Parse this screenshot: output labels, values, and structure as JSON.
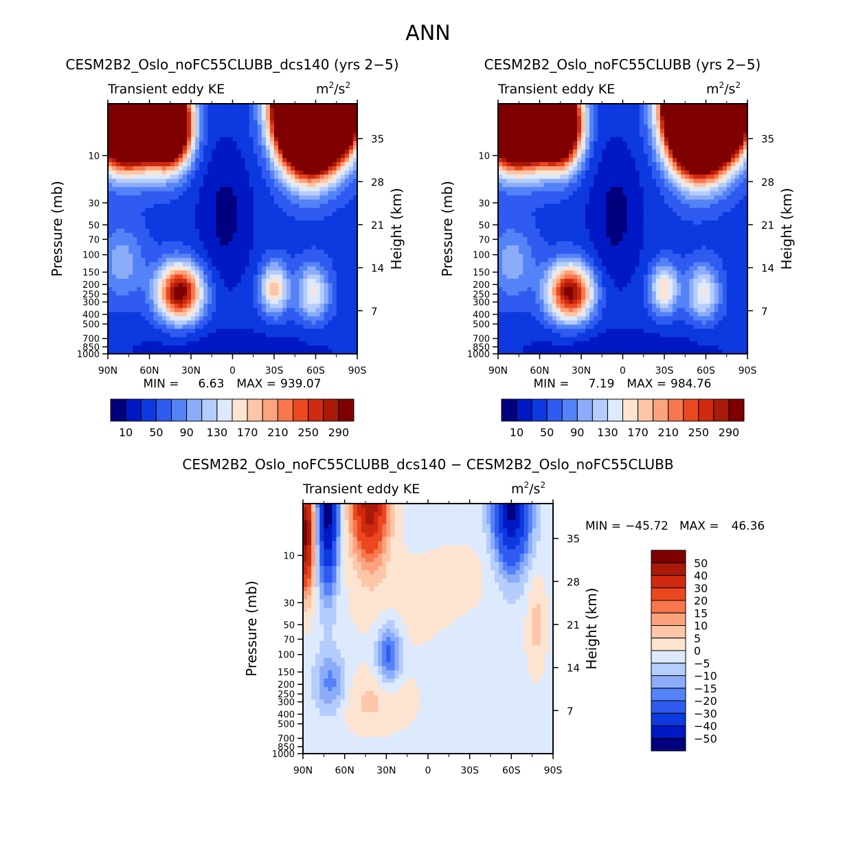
{
  "title": "ANN",
  "colors": {
    "level_scale_12": [
      "#00007f",
      "#0019c5",
      "#0d39e0",
      "#2f5bf0",
      "#5482f7",
      "#8cacfa",
      "#b5cdfc",
      "#dde9fd",
      "#fde4d0",
      "#fdc6a8",
      "#fca37e",
      "#f8774f",
      "#ec4820",
      "#cf2a10",
      "#a91a08",
      "#7f0000"
    ],
    "diff_scale": [
      "#00007f",
      "#0019c5",
      "#0d39e0",
      "#2f5bf0",
      "#5482f7",
      "#8cacfa",
      "#b5cdfc",
      "#dde9fd",
      "#fde4d0",
      "#fdc6a8",
      "#fca37e",
      "#f8774f",
      "#ec4820",
      "#cf2a10",
      "#a91a08",
      "#7f0000"
    ]
  },
  "chart_data": [
    {
      "type": "heatmap",
      "id": "panel-1",
      "title": "CESM2B2_Oslo_noFC55CLUBB_dcs140 (yrs 2−5)",
      "subtitle_left": "Transient eddy KE",
      "units_base": "m",
      "units_exp": "2",
      "units_den": "/s",
      "units_den_exp": "2",
      "ylabel": "Pressure (mb)",
      "y2label": "Height (km)",
      "xticks": [
        "90N",
        "60N",
        "30N",
        "0",
        "30S",
        "60S",
        "90S"
      ],
      "xtick_values": [
        90,
        60,
        30,
        0,
        -30,
        -60,
        -90
      ],
      "yticks": [
        "10",
        "30",
        "50",
        "70",
        "100",
        "150",
        "200",
        "250",
        "300",
        "400",
        "500",
        "700",
        "850",
        "1000"
      ],
      "ytick_values": [
        10,
        30,
        50,
        70,
        100,
        150,
        200,
        250,
        300,
        400,
        500,
        700,
        850,
        1000
      ],
      "ylim": [
        3,
        1000
      ],
      "y2ticks": [
        "35",
        "28",
        "21",
        "14",
        "7"
      ],
      "y2tick_values": [
        35,
        28,
        21,
        14,
        7
      ],
      "min_label": "MIN =",
      "min_value": "6.63",
      "max_label": "MAX =",
      "max_value": "939.07",
      "min": 6.63,
      "max": 939.07,
      "colorbar_labels": [
        "10",
        "50",
        "90",
        "130",
        "170",
        "210",
        "250",
        "290"
      ],
      "levels": [
        10,
        30,
        50,
        70,
        90,
        110,
        130,
        150,
        170,
        190,
        210,
        230,
        250,
        270,
        290
      ],
      "blobs": [
        {
          "lat": 75,
          "p": 3,
          "sl": 16,
          "sp": 0.75,
          "a": 1400
        },
        {
          "lat": 45,
          "p": 5,
          "sl": 10,
          "sp": 0.6,
          "a": 500
        },
        {
          "lat": -55,
          "p": 3,
          "sl": 14,
          "sp": 0.85,
          "a": 1500
        },
        {
          "lat": -75,
          "p": 3,
          "sl": 12,
          "sp": 0.7,
          "a": 600
        },
        {
          "lat": 38,
          "p": 240,
          "sl": 11,
          "sp": 0.45,
          "a": 270
        },
        {
          "lat": -30,
          "p": 220,
          "sl": 7,
          "sp": 0.4,
          "a": 140
        },
        {
          "lat": -58,
          "p": 240,
          "sl": 8,
          "sp": 0.45,
          "a": 110
        },
        {
          "lat": 80,
          "p": 120,
          "sl": 12,
          "sp": 0.6,
          "a": 60
        }
      ],
      "base": 42,
      "wells": [
        {
          "lat": 5,
          "p": 40,
          "sl": 14,
          "sp": 1.2,
          "a": 38
        },
        {
          "lat": 0,
          "p": 900,
          "sl": 60,
          "sp": 0.35,
          "a": 25
        }
      ]
    },
    {
      "type": "heatmap",
      "id": "panel-2",
      "title": "CESM2B2_Oslo_noFC55CLUBB (yrs 2−5)",
      "subtitle_left": "Transient eddy KE",
      "units_base": "m",
      "units_exp": "2",
      "units_den": "/s",
      "units_den_exp": "2",
      "ylabel": "Pressure (mb)",
      "y2label": "Height (km)",
      "xticks": [
        "90N",
        "60N",
        "30N",
        "0",
        "30S",
        "60S",
        "90S"
      ],
      "xtick_values": [
        90,
        60,
        30,
        0,
        -30,
        -60,
        -90
      ],
      "yticks": [
        "10",
        "30",
        "50",
        "70",
        "100",
        "150",
        "200",
        "250",
        "300",
        "400",
        "500",
        "700",
        "850",
        "1000"
      ],
      "ytick_values": [
        10,
        30,
        50,
        70,
        100,
        150,
        200,
        250,
        300,
        400,
        500,
        700,
        850,
        1000
      ],
      "ylim": [
        3,
        1000
      ],
      "y2ticks": [
        "35",
        "28",
        "21",
        "14",
        "7"
      ],
      "y2tick_values": [
        35,
        28,
        21,
        14,
        7
      ],
      "min_label": "MIN =",
      "min_value": "7.19",
      "max_label": "MAX =",
      "max_value": "984.76",
      "min": 7.19,
      "max": 984.76,
      "colorbar_labels": [
        "10",
        "50",
        "90",
        "130",
        "170",
        "210",
        "250",
        "290"
      ],
      "levels": [
        10,
        30,
        50,
        70,
        90,
        110,
        130,
        150,
        170,
        190,
        210,
        230,
        250,
        270,
        290
      ],
      "blobs": [
        {
          "lat": 75,
          "p": 3,
          "sl": 16,
          "sp": 0.75,
          "a": 1400
        },
        {
          "lat": 45,
          "p": 5,
          "sl": 10,
          "sp": 0.6,
          "a": 480
        },
        {
          "lat": -55,
          "p": 3,
          "sl": 14,
          "sp": 0.85,
          "a": 1550
        },
        {
          "lat": -75,
          "p": 3,
          "sl": 12,
          "sp": 0.7,
          "a": 600
        },
        {
          "lat": 38,
          "p": 240,
          "sl": 11,
          "sp": 0.45,
          "a": 262
        },
        {
          "lat": -30,
          "p": 220,
          "sl": 7,
          "sp": 0.4,
          "a": 128
        },
        {
          "lat": -58,
          "p": 240,
          "sl": 8,
          "sp": 0.45,
          "a": 110
        },
        {
          "lat": 80,
          "p": 120,
          "sl": 12,
          "sp": 0.6,
          "a": 60
        }
      ],
      "base": 42,
      "wells": [
        {
          "lat": 5,
          "p": 40,
          "sl": 14,
          "sp": 1.2,
          "a": 38
        },
        {
          "lat": 0,
          "p": 900,
          "sl": 60,
          "sp": 0.35,
          "a": 25
        }
      ]
    },
    {
      "type": "heatmap",
      "id": "panel-diff",
      "title": "CESM2B2_Oslo_noFC55CLUBB_dcs140 − CESM2B2_Oslo_noFC55CLUBB",
      "subtitle_left": "Transient eddy KE",
      "units_base": "m",
      "units_exp": "2",
      "units_den": "/s",
      "units_den_exp": "2",
      "ylabel": "Pressure (mb)",
      "y2label": "Height (km)",
      "xticks": [
        "90N",
        "60N",
        "30N",
        "0",
        "30S",
        "60S",
        "90S"
      ],
      "xtick_values": [
        90,
        60,
        30,
        0,
        -30,
        -60,
        -90
      ],
      "yticks": [
        "10",
        "30",
        "50",
        "70",
        "100",
        "150",
        "200",
        "250",
        "300",
        "400",
        "500",
        "700",
        "850",
        "1000"
      ],
      "ytick_values": [
        10,
        30,
        50,
        70,
        100,
        150,
        200,
        250,
        300,
        400,
        500,
        700,
        850,
        1000
      ],
      "ylim": [
        3,
        1000
      ],
      "y2ticks": [
        "35",
        "28",
        "21",
        "14",
        "7"
      ],
      "y2tick_values": [
        35,
        28,
        21,
        14,
        7
      ],
      "min_label": "MIN =",
      "min_value": "−45.72",
      "max_label": "MAX =",
      "max_value": "46.36",
      "min": -45.72,
      "max": 46.36,
      "colorbar_labels": [
        "50",
        "40",
        "30",
        "20",
        "15",
        "10",
        "5",
        "0",
        "−5",
        "−10",
        "−15",
        "−20",
        "−30",
        "−40",
        "−50"
      ],
      "levels": [
        -50,
        -40,
        -30,
        -20,
        -15,
        -10,
        -5,
        0,
        5,
        10,
        15,
        20,
        30,
        40,
        50
      ],
      "blobs": [
        {
          "lat": 88,
          "p": 6,
          "sl": 4,
          "sp": 0.9,
          "a": 55
        },
        {
          "lat": 42,
          "p": 3,
          "sl": 9,
          "sp": 0.9,
          "a": 48
        },
        {
          "lat": 72,
          "p": 3,
          "sl": 5,
          "sp": 1.3,
          "a": -55
        },
        {
          "lat": -60,
          "p": 3,
          "sl": 9,
          "sp": 1.0,
          "a": -52
        },
        {
          "lat": 28,
          "p": 100,
          "sl": 6,
          "sp": 0.5,
          "a": -22
        },
        {
          "lat": 70,
          "p": 200,
          "sl": 8,
          "sp": 0.5,
          "a": -16
        },
        {
          "lat": 40,
          "p": 300,
          "sl": 20,
          "sp": 0.5,
          "a": 8
        },
        {
          "lat": -78,
          "p": 50,
          "sl": 5,
          "sp": 0.8,
          "a": 9
        },
        {
          "lat": 20,
          "p": 30,
          "sl": 30,
          "sp": 0.9,
          "a": 4
        },
        {
          "lat": -30,
          "p": 15,
          "sl": 20,
          "sp": 0.6,
          "a": 3
        }
      ],
      "base": -2,
      "wells": []
    }
  ]
}
